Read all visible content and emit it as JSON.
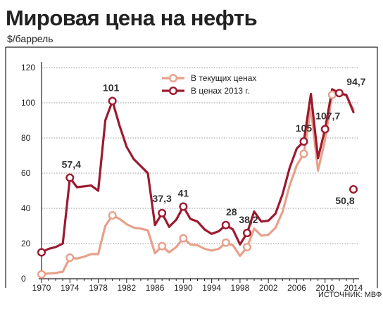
{
  "chart_data": {
    "type": "line",
    "title": "Мировая цена на нефть",
    "subtitle": "$/баррель",
    "source": "ИСТОЧНИК: МВФ",
    "ylim": [
      0,
      120
    ],
    "xlim": [
      1970,
      2014
    ],
    "y_ticks": [
      0,
      20,
      40,
      60,
      80,
      100,
      120
    ],
    "x_ticks": [
      1970,
      1974,
      1978,
      1982,
      1986,
      1990,
      1994,
      1998,
      2002,
      2006,
      2010,
      2014
    ],
    "grid": "horizontal dotted",
    "legend_position": "top-center",
    "series": [
      {
        "name": "В текущих ценах",
        "color": "#e8a08a",
        "x": [
          1970,
          1971,
          1972,
          1973,
          1974,
          1975,
          1976,
          1977,
          1978,
          1979,
          1980,
          1981,
          1982,
          1983,
          1984,
          1985,
          1986,
          1987,
          1988,
          1989,
          1990,
          1991,
          1992,
          1993,
          1994,
          1995,
          1996,
          1997,
          1998,
          1999,
          2000,
          2001,
          2002,
          2003,
          2004,
          2005,
          2006,
          2007,
          2008,
          2009,
          2010,
          2011,
          2012,
          2013,
          2014
        ],
        "y": [
          2.5,
          3,
          3.3,
          4,
          12,
          11.5,
          12.5,
          14,
          14,
          30,
          36,
          34,
          31,
          29,
          28.5,
          27.5,
          14.5,
          18.5,
          15,
          18,
          23,
          19.5,
          19,
          17,
          16,
          17,
          20.5,
          19,
          13,
          18,
          28.5,
          24.5,
          25,
          29,
          38,
          53,
          64.5,
          71,
          97,
          61.5,
          79,
          104.5,
          105,
          104,
          96
        ]
      },
      {
        "name": "В ценах 2013 г.",
        "color": "#9c1a2e",
        "x": [
          1970,
          1971,
          1972,
          1973,
          1974,
          1975,
          1976,
          1977,
          1978,
          1979,
          1980,
          1981,
          1982,
          1983,
          1984,
          1985,
          1986,
          1987,
          1988,
          1989,
          1990,
          1991,
          1992,
          1993,
          1994,
          1995,
          1996,
          1997,
          1998,
          1999,
          2000,
          2001,
          2002,
          2003,
          2004,
          2005,
          2006,
          2007,
          2008,
          2009,
          2010,
          2011,
          2012,
          2013,
          2014
        ],
        "y": [
          15,
          17,
          18,
          20,
          57.4,
          52,
          52.5,
          53,
          50,
          90,
          101,
          87,
          75,
          68,
          64,
          60,
          30.5,
          37.3,
          29.5,
          33.5,
          41,
          34,
          32.5,
          28,
          25.5,
          27,
          30.5,
          28,
          19.5,
          26,
          38.2,
          32.5,
          33,
          37,
          48,
          63,
          74,
          78,
          105,
          68.5,
          85,
          107.7,
          105.5,
          104.5,
          94.7
        ]
      }
    ],
    "markers": [
      {
        "series": 0,
        "x": 1970
      },
      {
        "series": 0,
        "x": 1974
      },
      {
        "series": 0,
        "x": 1980
      },
      {
        "series": 0,
        "x": 1987
      },
      {
        "series": 0,
        "x": 1990
      },
      {
        "series": 0,
        "x": 1996
      },
      {
        "series": 0,
        "x": 1999
      },
      {
        "series": 0,
        "x": 2007
      },
      {
        "series": 0,
        "x": 2011
      },
      {
        "series": 1,
        "x": 1970
      },
      {
        "series": 1,
        "x": 1974
      },
      {
        "series": 1,
        "x": 1980
      },
      {
        "series": 1,
        "x": 1987
      },
      {
        "series": 1,
        "x": 1990
      },
      {
        "series": 1,
        "x": 1996
      },
      {
        "series": 1,
        "x": 1999
      },
      {
        "series": 1,
        "x": 2007
      },
      {
        "series": 1,
        "x": 2010
      },
      {
        "series": 1,
        "x": 2012
      },
      {
        "series": 1,
        "x": 2014,
        "y": 50.8
      }
    ],
    "annotations": [
      {
        "text": "57,4",
        "x": 1974
      },
      {
        "text": "101",
        "x": 1980
      },
      {
        "text": "37,3",
        "x": 1987
      },
      {
        "text": "41",
        "x": 1990
      },
      {
        "text": "28",
        "x": 1996
      },
      {
        "text": "38,2",
        "x": 1999
      },
      {
        "text": "105",
        "x": 2007
      },
      {
        "text": "107,7",
        "x": 2010
      },
      {
        "text": "94,7",
        "x": 2013
      },
      {
        "text": "50,8",
        "x": 2014
      }
    ]
  }
}
